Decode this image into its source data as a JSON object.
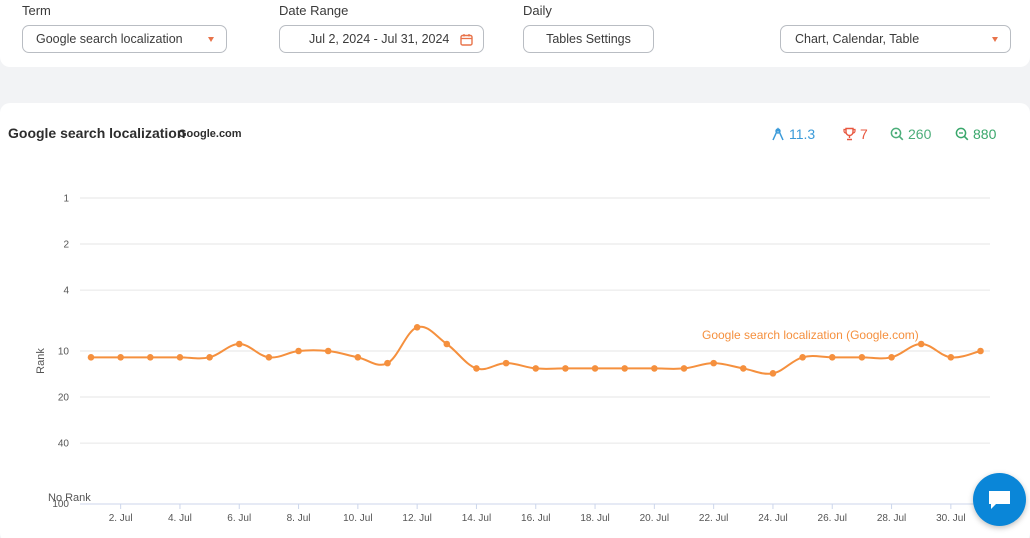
{
  "filters": {
    "term_label": "Term",
    "term_value": "Google search localization",
    "date_label": "Date Range",
    "date_value": "Jul 2, 2024 - Jul 31, 2024",
    "daily_label": "Daily",
    "tables_settings": "Tables Settings",
    "view_value": "Chart, Calendar, Table"
  },
  "colors": {
    "accent": "#f5903e",
    "caret": "#e8734a",
    "stat_blue": "#3a9ad9",
    "stat_red": "#e8573f",
    "stat_green": "#4cae7a",
    "stat_green2": "#39a76b",
    "chat": "#0a86d8"
  },
  "stats": {
    "avg": "11.3",
    "best": "7",
    "search_volume": "260",
    "results": "880"
  },
  "chart_data": {
    "type": "line",
    "title": "Google search localization",
    "subtitle": "Google.com",
    "ylabel": "Rank",
    "y_scale": "log",
    "y_reversed": true,
    "y_ticks": [
      1,
      2,
      4,
      10,
      20,
      40
    ],
    "y_bottom_label": "No Rank",
    "y_bottom_value": "100",
    "x_tick_labels": [
      "2. Jul",
      "4. Jul",
      "6. Jul",
      "8. Jul",
      "10. Jul",
      "12. Jul",
      "14. Jul",
      "16. Jul",
      "18. Jul",
      "20. Jul",
      "22. Jul",
      "24. Jul",
      "26. Jul",
      "28. Jul",
      "30. Jul"
    ],
    "x_days": [
      1,
      2,
      3,
      4,
      5,
      6,
      7,
      8,
      9,
      10,
      11,
      12,
      13,
      14,
      15,
      16,
      17,
      18,
      19,
      20,
      21,
      22,
      23,
      24,
      25,
      26,
      27,
      28,
      29,
      30,
      31
    ],
    "series": [
      {
        "name": "Google search localization (Google.com)",
        "values": [
          11,
          11,
          11,
          11,
          11,
          9,
          11,
          10,
          10,
          11,
          12,
          7,
          9,
          13,
          12,
          13,
          13,
          13,
          13,
          13,
          13,
          12,
          13,
          14,
          11,
          11,
          11,
          11,
          9,
          11,
          10
        ]
      }
    ],
    "grid": true,
    "legend": "inline-label"
  }
}
